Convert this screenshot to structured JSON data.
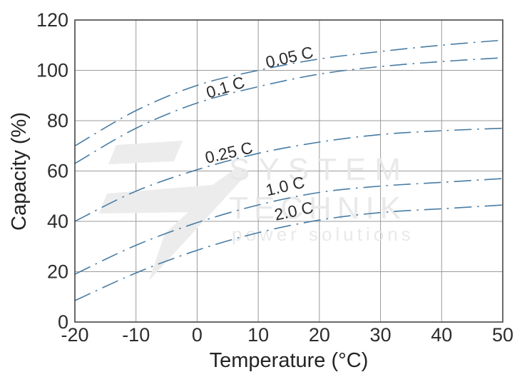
{
  "figure": {
    "watermark": {
      "brand_line1": "SYSTEM",
      "brand_line2": "TECHNIK",
      "tagline": "power solutions"
    }
  },
  "chart_data": {
    "type": "line",
    "title": "",
    "xlabel": "Temperature (°C)",
    "ylabel": "Capacity (%)",
    "xlim": [
      -20,
      50
    ],
    "ylim": [
      0,
      120
    ],
    "x_ticks": [
      -20,
      -10,
      0,
      10,
      20,
      30,
      40,
      50
    ],
    "y_ticks": [
      0,
      20,
      40,
      60,
      80,
      100,
      120
    ],
    "grid": true,
    "legend_position": "inline-curve-labels",
    "line_style": "dash-dot",
    "line_color": "#477ca4",
    "grid_color": "#9b9b9b",
    "border_color": "#454545",
    "x": [
      -20,
      -10,
      0,
      10,
      20,
      30,
      40,
      50
    ],
    "series": [
      {
        "name": "0.05 C",
        "values": [
          70,
          84,
          94,
          100,
          104.5,
          107.5,
          110,
          112
        ],
        "label_at": {
          "t": 15.3,
          "c": 105.3,
          "angle": -13
        }
      },
      {
        "name": "0.1 C",
        "values": [
          63,
          77,
          87,
          93.5,
          98.5,
          101.5,
          103.5,
          105
        ],
        "label_at": {
          "t": 4.9,
          "c": 93.4,
          "angle": -17
        }
      },
      {
        "name": "0.25 C",
        "values": [
          40,
          52,
          60.5,
          67,
          71.5,
          74.5,
          76,
          77
        ],
        "label_at": {
          "t": 5.4,
          "c": 67.4,
          "angle": -13
        }
      },
      {
        "name": "1.0 C",
        "values": [
          19,
          30.5,
          39.5,
          46.5,
          51.5,
          54,
          55.5,
          57
        ],
        "label_at": {
          "t": 14.6,
          "c": 54.1,
          "angle": -13
        }
      },
      {
        "name": "2.0 C",
        "values": [
          8.5,
          19.5,
          28.5,
          35.5,
          40.5,
          43.5,
          45,
          46.5
        ],
        "label_at": {
          "t": 16.0,
          "c": 44.2,
          "angle": -12
        }
      }
    ]
  }
}
